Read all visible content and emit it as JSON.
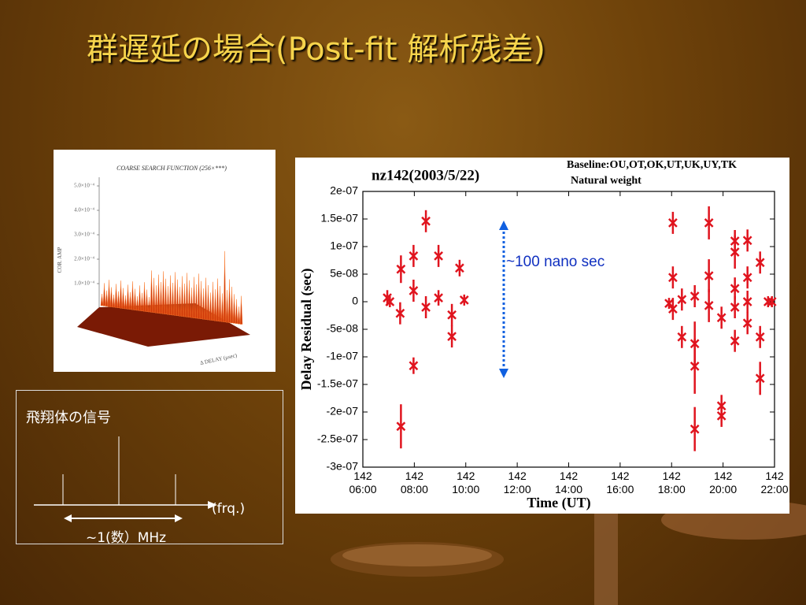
{
  "slide": {
    "title": "群遅延の場合(Post-fit 解析残差)",
    "search_plot": {
      "title": "COARSE SEARCH FUNCTION (256×***)",
      "y_label": "COR. AMP",
      "x_label": "Δ DELAY (μsec)",
      "yticks": [
        "5.0×10⁻⁴",
        "4.0×10⁻⁴",
        "3.0×10⁻⁴",
        "2.0×10⁻⁴",
        "1.0×10⁻⁴"
      ]
    },
    "diagram": {
      "title": "飛翔体の信号",
      "axis_label": "(frq.)",
      "span_label": "~1(数）MHz"
    }
  },
  "chart_data": {
    "type": "scatter",
    "title": "nz142(2003/5/22)",
    "subtitle": "Baseline:OU,OT,OK,UT,UK,UY,TK",
    "note": "Natural weight",
    "x_label": "Time (UT)",
    "y_label": "Delay Residual (sec)",
    "annotation": "~100 nano sec",
    "xlim": [
      6,
      22
    ],
    "xticks": [
      {
        "value": 6,
        "label": "142 06:00"
      },
      {
        "value": 8,
        "label": "142 08:00"
      },
      {
        "value": 10,
        "label": "142 10:00"
      },
      {
        "value": 12,
        "label": "142 12:00"
      },
      {
        "value": 14,
        "label": "142 14:00"
      },
      {
        "value": 16,
        "label": "142 16:00"
      },
      {
        "value": 18,
        "label": "142 18:00"
      },
      {
        "value": 20,
        "label": "142 20:00"
      },
      {
        "value": 22,
        "label": "142 22:00"
      }
    ],
    "ylim": [
      -3e-07,
      2e-07
    ],
    "yticks": [
      {
        "value": 2e-07,
        "label": "2e-07"
      },
      {
        "value": 1.5e-07,
        "label": "1.5e-07"
      },
      {
        "value": 1e-07,
        "label": "1e-07"
      },
      {
        "value": 5e-08,
        "label": "5e-08"
      },
      0,
      {
        "value": -5e-08,
        "label": "-5e-08"
      },
      {
        "value": -1e-07,
        "label": "-1e-07"
      },
      {
        "value": -1.5e-07,
        "label": "-1.5e-07"
      },
      {
        "value": -2e-07,
        "label": "-2e-07"
      },
      {
        "value": -2.5e-07,
        "label": "-2.5e-07"
      },
      {
        "value": -3e-07,
        "label": "-3e-07"
      }
    ],
    "series": [
      {
        "color": "#e0141e",
        "x": [
          6.95,
          7.05,
          7.45,
          7.48,
          7.48,
          7.97,
          7.97,
          7.97,
          8.45,
          8.45,
          8.94,
          8.94,
          9.46,
          9.46,
          9.76,
          9.94,
          17.9,
          18.05,
          18.05,
          18.05,
          18.4,
          18.4,
          18.9,
          18.9,
          18.9,
          18.9,
          19.45,
          19.45,
          19.45,
          19.94,
          19.94,
          19.94,
          20.46,
          20.46,
          20.46,
          20.46,
          20.46,
          20.95,
          20.95,
          20.95,
          20.95,
          21.44,
          21.44,
          21.44,
          21.75,
          21.9
        ],
        "values": [
          7e-09,
          0,
          -2.1e-08,
          5.9e-08,
          -2.26e-07,
          8.3e-08,
          2e-08,
          -1.16e-07,
          1.46e-07,
          -1e-08,
          8.3e-08,
          7e-09,
          -2.4e-08,
          -6.3e-08,
          6.1e-08,
          3e-09,
          -3e-09,
          1.43e-07,
          4.4e-08,
          -1.3e-08,
          4e-09,
          -6.4e-08,
          1e-08,
          -7.6e-08,
          -1.17e-07,
          -2.31e-07,
          1.43e-07,
          4.7e-08,
          -7e-09,
          -2.9e-08,
          -1.89e-07,
          -2.07e-07,
          9e-08,
          1.1e-07,
          2.4e-08,
          -1e-08,
          -7.1e-08,
          1.11e-07,
          4.4e-08,
          0,
          -3.9e-08,
          7.1e-08,
          -6.4e-08,
          -1.39e-07,
          0,
          0
        ],
        "errors": [
          1.4e-08,
          1e-08,
          2e-08,
          2.5e-08,
          4e-08,
          2e-08,
          2e-08,
          1.5e-08,
          2e-08,
          2e-08,
          2e-08,
          1.4e-08,
          2e-08,
          2e-08,
          1.5e-08,
          1e-08,
          1e-08,
          2e-08,
          2e-08,
          2e-08,
          2e-08,
          2e-08,
          2e-08,
          4e-08,
          5e-08,
          4e-08,
          3e-08,
          3e-08,
          3e-08,
          2e-08,
          2e-08,
          2e-08,
          3e-08,
          2e-08,
          2e-08,
          2e-08,
          2e-08,
          2e-08,
          2e-08,
          2e-08,
          2e-08,
          2e-08,
          2e-08,
          3e-08,
          1e-08,
          1e-08
        ]
      }
    ]
  }
}
